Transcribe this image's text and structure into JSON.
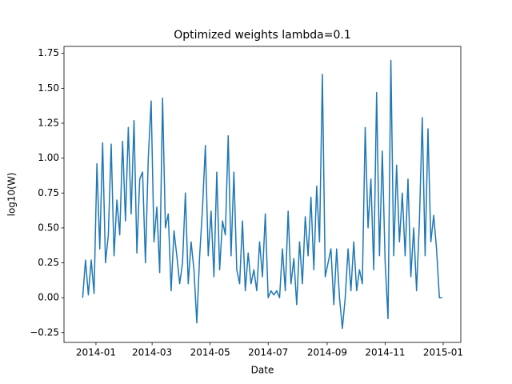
{
  "chart_data": {
    "type": "line",
    "title": "Optimized weights lambda=0.1",
    "x_label": "Date",
    "y_label": "log10(W)",
    "x": [
      -14,
      -11,
      -8,
      -5,
      -2,
      1,
      4,
      7,
      10,
      13,
      16,
      19,
      22,
      25,
      28,
      31,
      34,
      37,
      40,
      43,
      46,
      49,
      52,
      55,
      58,
      61,
      64,
      67,
      70,
      73,
      76,
      79,
      82,
      85,
      88,
      91,
      94,
      97,
      100,
      103,
      106,
      109,
      112,
      115,
      118,
      121,
      124,
      127,
      130,
      133,
      136,
      139,
      142,
      145,
      148,
      151,
      154,
      157,
      160,
      163,
      166,
      169,
      172,
      175,
      178,
      181,
      184,
      187,
      190,
      193,
      196,
      199,
      202,
      205,
      208,
      211,
      214,
      217,
      220,
      223,
      226,
      229,
      232,
      235,
      238,
      241,
      244,
      247,
      250,
      253,
      256,
      259,
      262,
      265,
      268,
      271,
      274,
      277,
      280,
      283,
      286,
      289,
      292,
      295,
      298,
      301,
      304,
      307,
      310,
      313,
      316,
      319,
      322,
      325,
      328,
      331,
      334,
      337,
      340,
      343,
      346,
      349,
      352,
      355,
      358,
      361,
      364
    ],
    "series": [
      {
        "name": "log10(W)",
        "color": "#1f77b4",
        "values": [
          0,
          0.27,
          0.02,
          0.27,
          0.03,
          0.96,
          0.35,
          1.11,
          0.25,
          0.45,
          1.1,
          0.3,
          0.7,
          0.45,
          1.12,
          0.55,
          1.22,
          0.6,
          1.27,
          0.32,
          0.85,
          0.9,
          0.25,
          1.0,
          1.41,
          0.4,
          0.65,
          0.18,
          1.43,
          0.5,
          0.6,
          0.05,
          0.48,
          0.3,
          0.1,
          0.25,
          0.75,
          0.1,
          0.4,
          0.2,
          -0.18,
          0.3,
          0.64,
          1.09,
          0.3,
          0.62,
          0.15,
          0.9,
          0.2,
          0.55,
          0.45,
          1.16,
          0.3,
          0.9,
          0.2,
          0.1,
          0.55,
          0.05,
          0.32,
          0.1,
          0.2,
          0.05,
          0.4,
          0.15,
          0.6,
          0.0,
          0.05,
          0.02,
          0.05,
          0.0,
          0.35,
          0.05,
          0.62,
          0.1,
          0.28,
          -0.05,
          0.4,
          0.1,
          0.58,
          0.3,
          0.72,
          0.2,
          0.8,
          0.4,
          1.6,
          0.15,
          0.25,
          0.35,
          -0.05,
          0.35,
          0.0,
          -0.22,
          0.0,
          0.35,
          0.05,
          0.4,
          0.05,
          0.2,
          0.1,
          1.22,
          0.5,
          0.85,
          0.2,
          1.47,
          0.3,
          1.05,
          0.25,
          -0.15,
          1.7,
          0.3,
          0.95,
          0.4,
          0.75,
          0.3,
          0.85,
          0.15,
          0.5,
          0.05,
          0.55,
          1.29,
          0.3,
          1.21,
          0.4,
          0.59,
          0.35,
          0.0,
          0.0
        ]
      }
    ],
    "xlim": [
      -33.6,
      383.5
    ],
    "xticks": [
      {
        "value": 0,
        "label": "2014-01"
      },
      {
        "value": 59,
        "label": "2014-03"
      },
      {
        "value": 120,
        "label": "2014-05"
      },
      {
        "value": 181,
        "label": "2014-07"
      },
      {
        "value": 243,
        "label": "2014-09"
      },
      {
        "value": 304,
        "label": "2014-11"
      },
      {
        "value": 365,
        "label": "2015-01"
      }
    ],
    "ylim": [
      -0.32,
      1.8
    ],
    "yticks": [
      {
        "value": -0.25,
        "label": "−0.25"
      },
      {
        "value": 0,
        "label": "0.00"
      },
      {
        "value": 0.25,
        "label": "0.25"
      },
      {
        "value": 0.5,
        "label": "0.50"
      },
      {
        "value": 0.75,
        "label": "0.75"
      },
      {
        "value": 1.0,
        "label": "1.00"
      },
      {
        "value": 1.25,
        "label": "1.25"
      },
      {
        "value": 1.5,
        "label": "1.50"
      },
      {
        "value": 1.75,
        "label": "1.75"
      }
    ]
  }
}
